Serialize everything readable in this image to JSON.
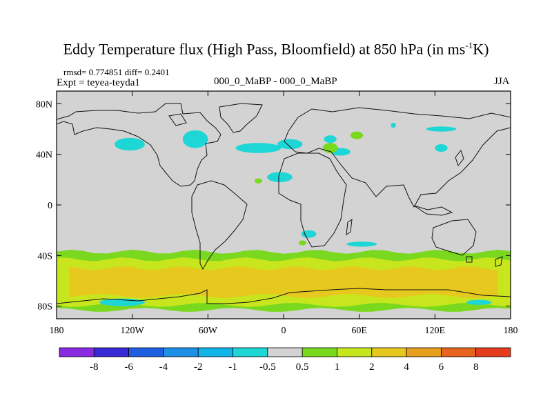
{
  "chart_data": {
    "type": "heatmap",
    "title_main": "Eddy Temperature flux (High Pass, Bloomfield) at 850 hPa (in ms",
    "title_sup": "-1",
    "title_end": "K)",
    "stats": "rmsd= 0.774851  diff= 0.2401",
    "expt": "Expt = teyea-teyda1",
    "center_label": "000_0_MaBP - 000_0_MaBP",
    "season": "JJA",
    "x_range": [
      -180,
      180
    ],
    "y_range": [
      -90,
      90
    ],
    "x_ticks": [
      {
        "value": -180,
        "label": "180"
      },
      {
        "value": -120,
        "label": "120W"
      },
      {
        "value": -60,
        "label": "60W"
      },
      {
        "value": 0,
        "label": "0"
      },
      {
        "value": 60,
        "label": "60E"
      },
      {
        "value": 120,
        "label": "120E"
      },
      {
        "value": 180,
        "label": "180"
      }
    ],
    "y_ticks": [
      {
        "value": 80,
        "label": "80N"
      },
      {
        "value": 40,
        "label": "40N"
      },
      {
        "value": 0,
        "label": "0"
      },
      {
        "value": -40,
        "label": "40S"
      },
      {
        "value": -80,
        "label": "80S"
      }
    ],
    "colorbar": {
      "colors": [
        "#8a2be2",
        "#3a2ad6",
        "#1e5fe0",
        "#1e90e6",
        "#10b4e8",
        "#1ed6d6",
        "#d3d3d3",
        "#7ad81e",
        "#c8e61e",
        "#e6c81e",
        "#e6a01e",
        "#e6641e",
        "#e63c1e"
      ],
      "labels": [
        "-8",
        "-6",
        "-4",
        "-2",
        "-1",
        "-0.5",
        "0.5",
        "1",
        "2",
        "4",
        "6",
        "8"
      ]
    },
    "field_bands": [
      {
        "level": "1",
        "color": "#7ad81e",
        "lon": [
          -180,
          180
        ],
        "lat_north": -37,
        "lat_south": -83
      },
      {
        "level": "2",
        "color": "#c8e61e",
        "lon": [
          -180,
          180
        ],
        "lat_north": -43,
        "lat_south": -79
      },
      {
        "level": "4",
        "color": "#e6c81e",
        "lon": [
          -170,
          170
        ],
        "lat_north": -50,
        "lat_south": -72
      }
    ],
    "field_blobs": [
      {
        "level": "-0.5",
        "color": "#1ed6d6",
        "lon": -122,
        "lat": 48,
        "rlon": 12,
        "rlat": 5
      },
      {
        "level": "-0.5",
        "color": "#1ed6d6",
        "lon": -70,
        "lat": 52,
        "rlon": 10,
        "rlat": 7
      },
      {
        "level": "-0.5",
        "color": "#1ed6d6",
        "lon": -20,
        "lat": 45,
        "rlon": 18,
        "rlat": 4
      },
      {
        "level": "-0.5",
        "color": "#1ed6d6",
        "lon": 5,
        "lat": 48,
        "rlon": 10,
        "rlat": 4
      },
      {
        "level": "-0.5",
        "color": "#1ed6d6",
        "lon": 45,
        "lat": 42,
        "rlon": 8,
        "rlat": 3
      },
      {
        "level": "-0.5",
        "color": "#1ed6d6",
        "lon": 37,
        "lat": 52,
        "rlon": 5,
        "rlat": 3
      },
      {
        "level": "-0.5",
        "color": "#1ed6d6",
        "lon": 125,
        "lat": 60,
        "rlon": 12,
        "rlat": 2
      },
      {
        "level": "-0.5",
        "color": "#1ed6d6",
        "lon": 125,
        "lat": 45,
        "rlon": 5,
        "rlat": 3
      },
      {
        "level": "-0.5",
        "color": "#1ed6d6",
        "lon": -3,
        "lat": 22,
        "rlon": 10,
        "rlat": 4
      },
      {
        "level": "-0.5",
        "color": "#1ed6d6",
        "lon": 20,
        "lat": -23,
        "rlon": 6,
        "rlat": 3
      },
      {
        "level": "-0.5",
        "color": "#1ed6d6",
        "lon": 62,
        "lat": -31,
        "rlon": 12,
        "rlat": 2
      },
      {
        "level": "-0.5",
        "color": "#1ed6d6",
        "lon": 87,
        "lat": 63,
        "rlon": 2,
        "rlat": 2
      },
      {
        "level": "-0.5",
        "color": "#1ed6d6",
        "lon": -128,
        "lat": -77,
        "rlon": 18,
        "rlat": 3
      },
      {
        "level": "-0.5",
        "color": "#1ed6d6",
        "lon": 155,
        "lat": -77,
        "rlon": 10,
        "rlat": 2
      },
      {
        "level": "1",
        "color": "#7ad81e",
        "lon": 58,
        "lat": 55,
        "rlon": 5,
        "rlat": 3
      },
      {
        "level": "1",
        "color": "#7ad81e",
        "lon": 37,
        "lat": 45,
        "rlon": 6,
        "rlat": 4
      },
      {
        "level": "1",
        "color": "#7ad81e",
        "lon": -20,
        "lat": 19,
        "rlon": 3,
        "rlat": 2
      },
      {
        "level": "1",
        "color": "#7ad81e",
        "lon": 15,
        "lat": -30,
        "rlon": 3,
        "rlat": 2
      }
    ]
  }
}
